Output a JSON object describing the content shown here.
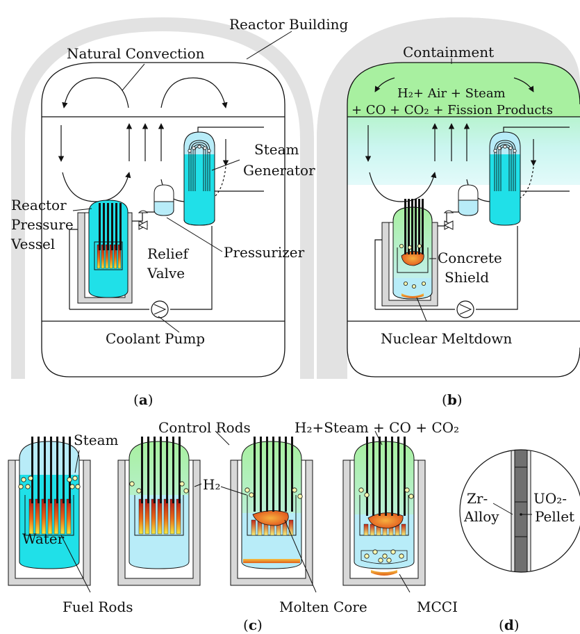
{
  "panel_a": {
    "caption_open": "(",
    "caption_letter": "a",
    "caption_close": ")",
    "reactor_building": "Reactor Building",
    "natural_convection": "Natural Convection",
    "steam_generator_1": "Steam",
    "steam_generator_2": "Generator",
    "rpv_1": "Reactor",
    "rpv_2": "Pressure",
    "rpv_3": "Vessel",
    "relief_1": "Relief",
    "relief_2": "Valve",
    "pressurizer": "Pressurizer",
    "coolant_pump": "Coolant Pump"
  },
  "panel_b": {
    "caption_open": "(",
    "caption_letter": "b",
    "caption_close": ")",
    "containment": "Containment",
    "gas_line_1": "H₂+ Air + Steam",
    "gas_line_2": "+ CO + CO₂ + Fission Products",
    "concrete_1": "Concrete",
    "concrete_2": "Shield",
    "meltdown": "Nuclear Meltdown"
  },
  "panel_c": {
    "caption_open": "(",
    "caption_letter": "c",
    "caption_close": ")",
    "steam": "Steam",
    "control_rods": "Control Rods",
    "gas_mix": "H₂+Steam + CO + CO₂",
    "h2": "H₂",
    "water": "Water",
    "fuel_rods": "Fuel Rods",
    "molten_core": "Molten Core",
    "mcci": "MCCI"
  },
  "panel_d": {
    "caption_open": "(",
    "caption_letter": "d",
    "caption_close": ")",
    "zr_1": "Zr-",
    "zr_2": "Alloy",
    "uo2_1": "UO₂-",
    "uo2_2": "Pellet"
  },
  "colors": {
    "building": "#e0e0e0",
    "coolant": "#20e0e8",
    "light_water": "#b8ecf8",
    "hydrogen_gas": "#a8f0a0",
    "molten": "#f07a20",
    "pellet": "#707070",
    "shield": "#d8d8d8"
  }
}
